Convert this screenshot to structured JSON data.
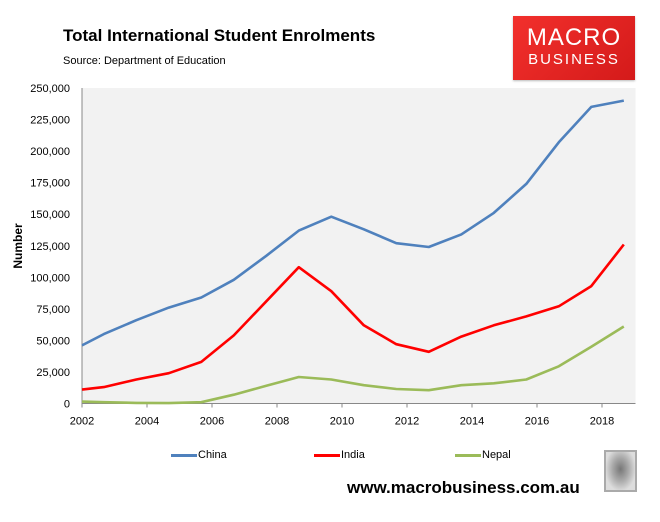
{
  "chart_data": {
    "type": "line",
    "title": "Total International Student Enrolments",
    "subtitle": "Source: Department of Education",
    "xlabel": "",
    "ylabel": "Number",
    "xlim": [
      2002,
      2019
    ],
    "ylim": [
      0,
      250000
    ],
    "x_ticks": [
      2002,
      2004,
      2006,
      2008,
      2010,
      2012,
      2014,
      2016,
      2018
    ],
    "y_ticks": [
      0,
      25000,
      50000,
      75000,
      100000,
      125000,
      150000,
      175000,
      200000,
      225000,
      250000
    ],
    "y_tick_labels": [
      "0",
      "25,000",
      "50,000",
      "75,000",
      "100,000",
      "125,000",
      "150,000",
      "175,000",
      "200,000",
      "225,000",
      "250,000"
    ],
    "grid": false,
    "legend_position": "bottom",
    "x": [
      2002,
      2002.67,
      2003.67,
      2004.67,
      2005.67,
      2006.67,
      2007.67,
      2008.67,
      2009.67,
      2010.67,
      2011.67,
      2012.67,
      2013.67,
      2014.67,
      2015.67,
      2016.67,
      2017.67,
      2018.67
    ],
    "series": [
      {
        "name": "China",
        "color": "#4f81bd",
        "values": [
          46000,
          55000,
          66000,
          76000,
          84000,
          98000,
          117000,
          137000,
          148000,
          138000,
          127000,
          124000,
          134000,
          151000,
          174000,
          207000,
          235000,
          240000
        ]
      },
      {
        "name": "India",
        "color": "#ff0000",
        "values": [
          11000,
          13000,
          19000,
          24000,
          33000,
          54000,
          81000,
          108000,
          89000,
          62000,
          47000,
          41000,
          53000,
          62000,
          69000,
          77000,
          93000,
          126000
        ]
      },
      {
        "name": "Nepal",
        "color": "#9bbb59",
        "values": [
          1500,
          1000,
          500,
          300,
          1000,
          7000,
          14000,
          21000,
          19000,
          14500,
          11500,
          10500,
          14500,
          16000,
          19000,
          29500,
          45000,
          61000
        ]
      }
    ]
  },
  "branding": {
    "logo_line1": "MACRO",
    "logo_line2": "BUSINESS",
    "url": "www.macrobusiness.com.au",
    "mascot_icon": "wolf-icon"
  }
}
